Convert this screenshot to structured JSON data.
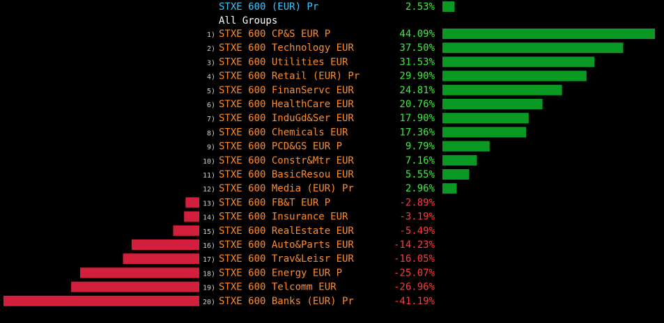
{
  "chart_data": {
    "type": "bar",
    "orientation": "horizontal",
    "index": {
      "name": "STXE 600 (EUR) Pr",
      "value": 2.53,
      "display": "2.53%"
    },
    "group_label": "All Groups",
    "categories": [
      "STXE 600 CP&S EUR P",
      "STXE 600 Technology EUR",
      "STXE 600 Utilities EUR",
      "STXE 600 Retail (EUR) Pr",
      "STXE 600 FinanServc EUR",
      "STXE 600 HealthCare EUR",
      "STXE 600 InduGd&Ser EUR",
      "STXE 600 Chemicals EUR",
      "STXE 600 PCD&GS EUR P",
      "STXE 600 Constr&Mtr EUR",
      "STXE 600 BasicResou EUR",
      "STXE 600 Media (EUR) Pr",
      "STXE 600 FB&T EUR P",
      "STXE 600 Insurance EUR",
      "STXE 600 RealEstate EUR",
      "STXE 600 Auto&Parts EUR",
      "STXE 600 Trav&Leisr EUR",
      "STXE 600 Energy EUR P",
      "STXE 600 Telcomm EUR",
      "STXE 600 Banks (EUR) Pr"
    ],
    "ranks": [
      "1)",
      "2)",
      "3)",
      "4)",
      "5)",
      "6)",
      "7)",
      "8)",
      "9)",
      "10)",
      "11)",
      "12)",
      "13)",
      "14)",
      "15)",
      "16)",
      "17)",
      "18)",
      "19)",
      "20)"
    ],
    "values": [
      44.09,
      37.5,
      31.53,
      29.9,
      24.81,
      20.76,
      17.9,
      17.36,
      9.79,
      7.16,
      5.55,
      2.96,
      -2.89,
      -3.19,
      -5.49,
      -14.23,
      -16.05,
      -25.07,
      -26.96,
      -41.19
    ],
    "value_labels": [
      "44.09%",
      "37.50%",
      "31.53%",
      "29.90%",
      "24.81%",
      "20.76%",
      "17.90%",
      "17.36%",
      "9.79%",
      "7.16%",
      "5.55%",
      "2.96%",
      "-2.89%",
      "-3.19%",
      "-5.49%",
      "-14.23%",
      "-16.05%",
      "-25.07%",
      "-26.96%",
      "-41.19%"
    ],
    "grid": false,
    "colors": {
      "background": "#000000",
      "positive_bar": "#0a9a23",
      "negative_bar": "#d2203c",
      "positive_text": "#3cf03c",
      "negative_text": "#ff3c3c",
      "category_text": "#ff8c28",
      "index_text": "#3cc8ff",
      "group_text": "#ffffff",
      "rank_text": "#d2d2d2"
    }
  }
}
